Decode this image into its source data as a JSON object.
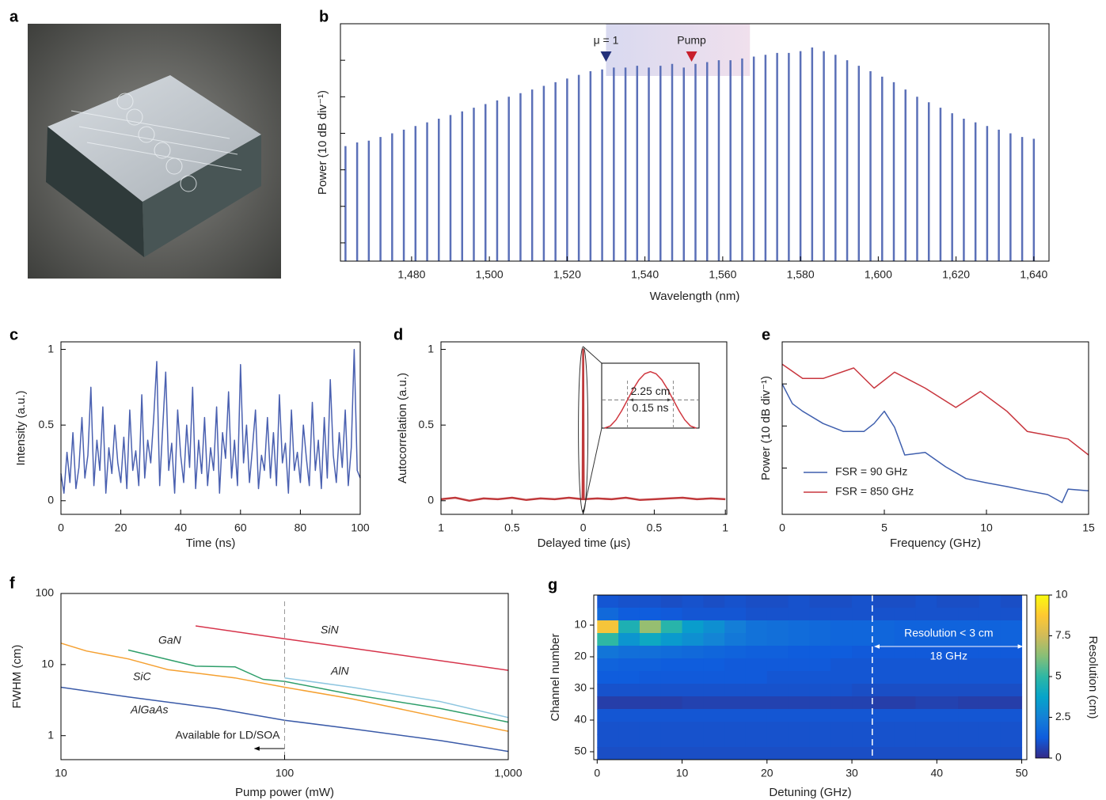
{
  "image_panel": {
    "label": "a"
  },
  "chart_data": [
    {
      "type": "bar",
      "label": "b",
      "xlabel": "Wavelength (nm)",
      "ylabel": "Power (10 dB div⁻¹)",
      "color": "#5b70b8",
      "x": [
        1463,
        1466,
        1469,
        1472,
        1475,
        1478,
        1481,
        1484,
        1487,
        1490,
        1493,
        1496,
        1499,
        1502,
        1505,
        1508,
        1511,
        1514,
        1517,
        1520,
        1523,
        1526,
        1529,
        1532,
        1535,
        1538,
        1541,
        1544,
        1547,
        1550,
        1553,
        1556,
        1559,
        1562,
        1565,
        1568,
        1571,
        1574,
        1577,
        1580,
        1583,
        1586,
        1589,
        1592,
        1595,
        1598,
        1601,
        1604,
        1607,
        1610,
        1613,
        1616,
        1619,
        1622,
        1625,
        1628,
        1631,
        1634,
        1637,
        1640
      ],
      "values": [
        31.5,
        32.5,
        33,
        34,
        35,
        36,
        37,
        38,
        39,
        40,
        41,
        42,
        43,
        44,
        45,
        46,
        47,
        48,
        49,
        50,
        51,
        52,
        52.5,
        53,
        53,
        53.5,
        53,
        53.5,
        54,
        53,
        54,
        54.5,
        55,
        55,
        55.5,
        56,
        56.5,
        57,
        57,
        57.5,
        58.5,
        57.5,
        56.5,
        55,
        53.5,
        52,
        50.5,
        49,
        47,
        45,
        43.5,
        42,
        40.5,
        39,
        38,
        37,
        36,
        35,
        34,
        33.5
      ],
      "xlim": [
        1461.7,
        1643.9
      ],
      "xticks": [
        {
          "value": 1480,
          "label": "1,480"
        },
        {
          "value": 1500,
          "label": "1,500"
        },
        {
          "value": 1520,
          "label": "1,520"
        },
        {
          "value": 1540,
          "label": "1,540"
        },
        {
          "value": 1560,
          "label": "1,560"
        },
        {
          "value": 1580,
          "label": "1,580"
        },
        {
          "value": 1600,
          "label": "1,600"
        },
        {
          "value": 1620,
          "label": "1,620"
        },
        {
          "value": 1640,
          "label": "1,640"
        }
      ],
      "ylim": [
        0,
        65
      ],
      "yticks": [
        5,
        15,
        25,
        35,
        45,
        55
      ],
      "ytick_labels": false,
      "shade": [
        1530,
        1567
      ],
      "annotations": [
        {
          "text": "μ = 1",
          "x": 1530,
          "color": "#22307a"
        },
        {
          "text": "Pump",
          "x": 1552,
          "color": "#c8202c"
        }
      ]
    },
    {
      "type": "line",
      "label": "c",
      "xlabel": "Time (ns)",
      "ylabel": "Intensity (a.u.)",
      "x": [
        0,
        1,
        2,
        3,
        4,
        5,
        6,
        7,
        8,
        9,
        10,
        11,
        12,
        13,
        14,
        15,
        16,
        17,
        18,
        19,
        20,
        21,
        22,
        23,
        24,
        25,
        26,
        27,
        28,
        29,
        30,
        31,
        32,
        33,
        34,
        35,
        36,
        37,
        38,
        39,
        40,
        41,
        42,
        43,
        44,
        45,
        46,
        47,
        48,
        49,
        50,
        51,
        52,
        53,
        54,
        55,
        56,
        57,
        58,
        59,
        60,
        61,
        62,
        63,
        64,
        65,
        66,
        67,
        68,
        69,
        70,
        71,
        72,
        73,
        74,
        75,
        76,
        77,
        78,
        79,
        80,
        81,
        82,
        83,
        84,
        85,
        86,
        87,
        88,
        89,
        90,
        91,
        92,
        93,
        94,
        95,
        96,
        97,
        98,
        99,
        100
      ],
      "series": [
        {
          "color": "#4a60b0",
          "values": [
            0.18,
            0.05,
            0.32,
            0.12,
            0.45,
            0.08,
            0.22,
            0.55,
            0.15,
            0.3,
            0.75,
            0.1,
            0.4,
            0.2,
            0.62,
            0.05,
            0.35,
            0.18,
            0.5,
            0.25,
            0.12,
            0.42,
            0.08,
            0.6,
            0.2,
            0.33,
            0.1,
            0.7,
            0.15,
            0.4,
            0.25,
            0.55,
            0.92,
            0.1,
            0.48,
            0.85,
            0.2,
            0.38,
            0.05,
            0.6,
            0.3,
            0.12,
            0.5,
            0.22,
            0.75,
            0.08,
            0.4,
            0.18,
            0.55,
            0.1,
            0.35,
            0.2,
            0.62,
            0.05,
            0.45,
            0.28,
            0.72,
            0.15,
            0.4,
            0.1,
            0.9,
            0.25,
            0.5,
            0.12,
            0.35,
            0.6,
            0.08,
            0.3,
            0.2,
            0.55,
            0.15,
            0.45,
            0.1,
            0.7,
            0.25,
            0.38,
            0.05,
            0.6,
            0.2,
            0.32,
            0.12,
            0.5,
            0.28,
            0.1,
            0.65,
            0.2,
            0.4,
            0.08,
            0.55,
            0.15,
            0.8,
            0.3,
            0.12,
            0.45,
            0.22,
            0.6,
            0.1,
            0.35,
            1.0,
            0.2,
            0.15
          ]
        }
      ],
      "xlim": [
        0,
        100
      ],
      "xticks": [
        0,
        20,
        40,
        60,
        80,
        100
      ],
      "ylim": [
        -0.09,
        1.05
      ],
      "yticks": [
        0,
        0.5,
        1
      ]
    },
    {
      "type": "line",
      "label": "d",
      "xlabel": "Delayed time (μs)",
      "ylabel": "Autocorrelation (a.u.)",
      "x": [
        -1,
        -0.9,
        -0.8,
        -0.7,
        -0.6,
        -0.5,
        -0.4,
        -0.3,
        -0.2,
        -0.1,
        -0.004,
        0,
        0.004,
        0.1,
        0.2,
        0.3,
        0.4,
        0.5,
        0.6,
        0.7,
        0.8,
        0.9,
        1
      ],
      "series": [
        {
          "color": "#c0393b",
          "values": [
            0.01,
            0.02,
            0.0,
            0.015,
            0.01,
            0.02,
            0.005,
            0.015,
            0.01,
            0.02,
            0.01,
            1,
            0.01,
            0.015,
            0.01,
            0.02,
            0.005,
            0.01,
            0.015,
            0.02,
            0.01,
            0.015,
            0.01
          ]
        }
      ],
      "xlim": [
        -1,
        1.01
      ],
      "xticks": [
        {
          "value": -1,
          "label": "1"
        },
        {
          "value": -0.5,
          "label": "0.5"
        },
        0,
        0.5,
        1
      ],
      "ylim": [
        -0.09,
        1.05
      ],
      "yticks": [
        0,
        0.5,
        1
      ],
      "inset": {
        "x": [
          -0.16,
          -0.14,
          -0.12,
          -0.1,
          -0.08,
          -0.06,
          -0.04,
          -0.02,
          0,
          0.02,
          0.04,
          0.06,
          0.08,
          0.1,
          0.12,
          0.14,
          0.16
        ],
        "values": [
          0,
          0.038,
          0.146,
          0.309,
          0.5,
          0.691,
          0.854,
          0.962,
          1,
          0.962,
          0.854,
          0.691,
          0.5,
          0.309,
          0.146,
          0.038,
          0
        ],
        "color": "#d0373f",
        "xlim": [
          -0.17,
          0.17
        ],
        "ylim": [
          0,
          1.15
        ],
        "half_max": 0.5,
        "fwhm": [
          -0.08,
          0.08
        ],
        "annotations": [
          "2.25 cm",
          "0.15 ns"
        ]
      }
    },
    {
      "type": "line",
      "label": "e",
      "xlabel": "Frequency (GHz)",
      "ylabel": "Power (10 dB div⁻¹)",
      "series": [
        {
          "name": "FSR = 90 GHz",
          "color": "#3f5fae",
          "x": [
            0,
            0.5,
            1,
            2,
            3,
            4,
            4.5,
            5,
            5.5,
            6,
            7,
            8,
            9,
            10,
            11,
            12,
            13,
            13.7,
            14,
            15
          ],
          "values": [
            31,
            26.3,
            24.5,
            21.6,
            19.7,
            19.7,
            21.6,
            24.5,
            20.7,
            14.1,
            14.7,
            11.3,
            8.5,
            7.5,
            6.6,
            5.6,
            4.7,
            2.8,
            6,
            5.6
          ]
        },
        {
          "name": "FSR = 850 GHz",
          "color": "#c8363e",
          "x": [
            0,
            1,
            2,
            3.5,
            4.5,
            5.5,
            7,
            8.5,
            9.7,
            11,
            12,
            13,
            14,
            15
          ],
          "values": [
            35.7,
            32.3,
            32.3,
            34.8,
            30,
            33.8,
            30,
            25.4,
            29.2,
            24.5,
            19.7,
            18.8,
            17.9,
            14.1
          ]
        }
      ],
      "xlim": [
        0,
        15
      ],
      "xticks": [
        0,
        5,
        10,
        15
      ],
      "ylim": [
        0,
        41
      ],
      "yticks": [
        11,
        21,
        31
      ],
      "ytick_labels": false,
      "legend": "lower left"
    },
    {
      "type": "line",
      "label": "f",
      "xlabel": "Pump power (mW)",
      "ylabel": "FWHM (cm)",
      "xscale": "log",
      "yscale": "log",
      "series": [
        {
          "name": "SiN",
          "color": "#d6334a",
          "x": [
            40,
            100,
            200,
            1000
          ],
          "values": [
            35,
            23,
            17,
            8.3
          ]
        },
        {
          "name": "AlN",
          "color": "#8ec6e0",
          "x": [
            100,
            200,
            500,
            1000
          ],
          "values": [
            6.5,
            4.8,
            3,
            1.8
          ]
        },
        {
          "name": "GaN",
          "color": "#2e9e6a",
          "x": [
            20,
            40,
            60,
            80,
            100,
            200,
            500,
            1000
          ],
          "values": [
            16,
            9.5,
            9.3,
            6.2,
            5.8,
            3.8,
            2.4,
            1.55
          ]
        },
        {
          "name": "SiC",
          "color": "#f5a030",
          "x": [
            10,
            13,
            20,
            30,
            60,
            100,
            200,
            500,
            1000
          ],
          "values": [
            20,
            15.5,
            12,
            8.5,
            6.5,
            4.8,
            3.3,
            1.8,
            1.15
          ]
        },
        {
          "name": "AlGaAs",
          "color": "#3a5aa8",
          "x": [
            10,
            20,
            50,
            100,
            200,
            500,
            1000
          ],
          "values": [
            4.8,
            3.5,
            2.4,
            1.65,
            1.25,
            0.85,
            0.6
          ]
        }
      ],
      "xlim": [
        10,
        1000
      ],
      "xticks": [
        10,
        100,
        {
          "value": 1000,
          "label": "1,000"
        }
      ],
      "ylim": [
        0.46,
        100
      ],
      "yticks": [
        1,
        10,
        100
      ],
      "ref_line": 100,
      "annotation": "Available for LD/SOA"
    },
    {
      "type": "heatmap",
      "label": "g",
      "xlabel": "Detuning (GHz)",
      "ylabel": "Channel number",
      "zlabel": "Resolution (cm)",
      "colormap": "parula",
      "x_edges": [
        0,
        2.5,
        5,
        7.5,
        10,
        12.5,
        15,
        17.5,
        20,
        22.5,
        25,
        27.5,
        30,
        32.5,
        35,
        37.5,
        40,
        42.5,
        45,
        47.5,
        50
      ],
      "y_edges": [
        0.5,
        4.5,
        8.5,
        12.5,
        16.5,
        20.5,
        24.5,
        28.5,
        32.5,
        36.5,
        40.5,
        44.5,
        48.5,
        52.5
      ],
      "z": [
        [
          1.1,
          1.0,
          1.0,
          0.9,
          1.0,
          0.9,
          1.0,
          0.9,
          0.9,
          1.0,
          0.9,
          0.9,
          1.0,
          0.9,
          0.9,
          1.0,
          0.9,
          0.9,
          1.0,
          0.9
        ],
        [
          1.7,
          1.3,
          1.3,
          1.2,
          1.1,
          1.1,
          1.1,
          1.0,
          1.0,
          1.0,
          1.0,
          1.0,
          1.0,
          1.0,
          1.0,
          1.0,
          1.0,
          1.0,
          1.0,
          1.0
        ],
        [
          8.5,
          4.5,
          6.5,
          4.8,
          3.5,
          3.0,
          2.4,
          2.0,
          1.9,
          1.8,
          1.7,
          1.6,
          1.6,
          1.6,
          1.5,
          1.5,
          1.5,
          1.5,
          1.5,
          1.5
        ],
        [
          5.0,
          3.2,
          4.0,
          3.4,
          3.0,
          2.6,
          2.2,
          2.0,
          1.9,
          1.8,
          1.7,
          1.6,
          1.6,
          1.6,
          1.5,
          1.5,
          1.5,
          1.5,
          1.5,
          1.5
        ],
        [
          2.1,
          1.9,
          1.9,
          1.8,
          1.7,
          1.6,
          1.5,
          1.4,
          1.4,
          1.3,
          1.3,
          1.3,
          1.2,
          1.2,
          1.2,
          1.2,
          1.2,
          1.2,
          1.2,
          1.2
        ],
        [
          1.5,
          1.4,
          1.4,
          1.3,
          1.3,
          1.3,
          1.2,
          1.2,
          1.2,
          1.2,
          1.2,
          1.1,
          1.1,
          1.1,
          1.1,
          1.1,
          1.1,
          1.1,
          1.1,
          1.1
        ],
        [
          1.3,
          1.3,
          1.2,
          1.2,
          1.2,
          1.2,
          1.2,
          1.2,
          1.1,
          1.1,
          1.1,
          1.1,
          1.1,
          1.1,
          1.1,
          1.1,
          1.1,
          1.1,
          1.1,
          1.1
        ],
        [
          1.0,
          1.0,
          1.0,
          1.0,
          1.0,
          1.0,
          1.0,
          1.0,
          1.0,
          1.0,
          1.0,
          1.0,
          0.9,
          0.9,
          0.9,
          0.9,
          0.9,
          0.9,
          0.9,
          0.9
        ],
        [
          0.5,
          0.5,
          0.5,
          0.5,
          0.6,
          0.6,
          0.6,
          0.6,
          0.6,
          0.6,
          0.6,
          0.6,
          0.6,
          0.5,
          0.5,
          0.6,
          0.6,
          0.5,
          0.5,
          0.5
        ],
        [
          1.1,
          1.1,
          1.1,
          1.1,
          1.1,
          1.1,
          1.1,
          1.1,
          1.1,
          1.1,
          1.1,
          1.1,
          1.1,
          1.1,
          1.1,
          1.1,
          1.1,
          1.1,
          1.1,
          1.1
        ],
        [
          1.0,
          1.0,
          1.0,
          1.0,
          1.0,
          1.0,
          1.0,
          1.0,
          1.0,
          1.0,
          1.0,
          1.0,
          1.0,
          1.0,
          1.0,
          1.0,
          1.0,
          1.0,
          1.0,
          1.0
        ],
        [
          1.0,
          1.0,
          1.0,
          1.0,
          1.0,
          1.0,
          1.0,
          1.0,
          1.0,
          1.0,
          1.0,
          1.0,
          1.0,
          1.0,
          1.0,
          1.0,
          1.0,
          1.0,
          1.0,
          1.0
        ],
        [
          0.9,
          0.9,
          0.9,
          0.9,
          0.9,
          0.9,
          0.9,
          0.9,
          0.9,
          0.9,
          0.9,
          0.9,
          0.9,
          0.9,
          0.9,
          0.9,
          0.9,
          0.9,
          0.9,
          0.9
        ]
      ],
      "xlim": [
        -0.4,
        50.6
      ],
      "xticks": [
        0,
        10,
        20,
        30,
        40,
        50
      ],
      "ylim": [
        52.5,
        0.5
      ],
      "yticks": [
        10,
        20,
        30,
        40,
        50
      ],
      "zlim": [
        0,
        10
      ],
      "zticks": [
        0,
        2.5,
        5,
        7.5,
        10
      ],
      "vline": 32.4,
      "span": [
        32.4,
        50.4
      ],
      "annotations": [
        "Resolution < 3 cm",
        "18 GHz"
      ]
    }
  ]
}
